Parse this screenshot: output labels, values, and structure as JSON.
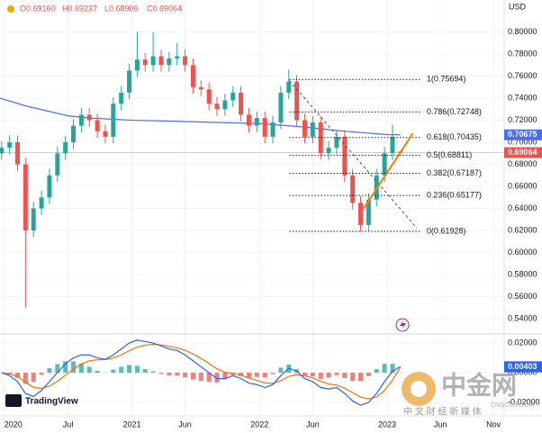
{
  "chart_data": [
    {
      "type": "candlestick",
      "header": [
        "O0.69160",
        "H0.69237",
        "L0.68906",
        "C0.69064"
      ],
      "currency": "USD",
      "up_color": "#26a69a",
      "down_color": "#ef5350",
      "xlim": [
        -0.4,
        47
      ],
      "ylim": [
        0.527,
        0.829
      ],
      "xticks": [
        {
          "value": 0,
          "label": "2020"
        },
        {
          "value": 6,
          "label": "Jul"
        },
        {
          "value": 12,
          "label": "2021"
        },
        {
          "value": 17,
          "label": "Jun"
        },
        {
          "value": 24,
          "label": "2022"
        },
        {
          "value": 29,
          "label": "Jun"
        },
        {
          "value": 36,
          "label": "2023"
        },
        {
          "value": 41,
          "label": "Jun"
        },
        {
          "value": 46,
          "label": "Nov"
        }
      ],
      "yticks": [
        {
          "value": 0.54,
          "label": "0.54000"
        },
        {
          "value": 0.56,
          "label": "0.56000"
        },
        {
          "value": 0.58,
          "label": "0.58000"
        },
        {
          "value": 0.6,
          "label": "0.60000"
        },
        {
          "value": 0.62,
          "label": "0.62000"
        },
        {
          "value": 0.64,
          "label": "0.64000"
        },
        {
          "value": 0.66,
          "label": "0.66000"
        },
        {
          "value": 0.68,
          "label": "0.68000"
        },
        {
          "value": 0.7,
          "label": "0.70000"
        },
        {
          "value": 0.72,
          "label": "0.72000"
        },
        {
          "value": 0.74,
          "label": "0.74000"
        },
        {
          "value": 0.76,
          "label": "0.76000"
        },
        {
          "value": 0.78,
          "label": "0.78000"
        },
        {
          "value": 0.8,
          "label": "0.80000"
        }
      ],
      "grid": true,
      "x": [
        -0.25,
        0.5,
        1.25,
        2,
        2.75,
        3.5,
        4.25,
        5,
        5.75,
        6.5,
        7.25,
        8,
        8.75,
        9.5,
        10.25,
        11,
        11.75,
        12.5,
        13.25,
        14,
        14.75,
        15.5,
        16.25,
        17,
        17.75,
        18.5,
        19.25,
        20,
        20.75,
        21.5,
        22.25,
        23,
        23.75,
        24.5,
        25.25,
        26,
        26.75,
        27.5,
        28.25,
        29,
        29.75,
        30.5,
        31.25,
        32,
        32.75,
        33.5,
        34.25,
        35,
        35.75,
        36.5,
        37.25
      ],
      "open": [
        0.69,
        0.695,
        0.7,
        0.68,
        0.62,
        0.64,
        0.65,
        0.67,
        0.69,
        0.7,
        0.715,
        0.725,
        0.72,
        0.71,
        0.705,
        0.735,
        0.745,
        0.765,
        0.775,
        0.77,
        0.778,
        0.77,
        0.776,
        0.778,
        0.77,
        0.75,
        0.748,
        0.735,
        0.73,
        0.738,
        0.745,
        0.725,
        0.715,
        0.722,
        0.705,
        0.718,
        0.745,
        0.755,
        0.72,
        0.705,
        0.718,
        0.69,
        0.695,
        0.705,
        0.67,
        0.645,
        0.625,
        0.648,
        0.67,
        0.69,
        0.6916
      ],
      "high": [
        0.701,
        0.706,
        0.706,
        0.686,
        0.646,
        0.656,
        0.676,
        0.696,
        0.706,
        0.721,
        0.731,
        0.731,
        0.726,
        0.716,
        0.741,
        0.751,
        0.771,
        0.8,
        0.781,
        0.8,
        0.784,
        0.782,
        0.79,
        0.784,
        0.776,
        0.756,
        0.754,
        0.741,
        0.744,
        0.751,
        0.751,
        0.731,
        0.728,
        0.728,
        0.724,
        0.751,
        0.766,
        0.761,
        0.726,
        0.724,
        0.724,
        0.701,
        0.711,
        0.711,
        0.676,
        0.651,
        0.654,
        0.676,
        0.696,
        0.716,
        0.69237
      ],
      "low": [
        0.684,
        0.689,
        0.674,
        0.55,
        0.614,
        0.634,
        0.644,
        0.664,
        0.684,
        0.694,
        0.709,
        0.714,
        0.704,
        0.699,
        0.699,
        0.729,
        0.739,
        0.759,
        0.764,
        0.764,
        0.764,
        0.764,
        0.77,
        0.764,
        0.744,
        0.742,
        0.729,
        0.724,
        0.724,
        0.732,
        0.719,
        0.709,
        0.709,
        0.699,
        0.699,
        0.712,
        0.739,
        0.714,
        0.699,
        0.699,
        0.684,
        0.684,
        0.689,
        0.664,
        0.639,
        0.619,
        0.619,
        0.642,
        0.664,
        0.684,
        0.68906
      ],
      "close": [
        0.695,
        0.7,
        0.68,
        0.62,
        0.64,
        0.65,
        0.67,
        0.69,
        0.7,
        0.715,
        0.725,
        0.72,
        0.71,
        0.705,
        0.735,
        0.745,
        0.765,
        0.775,
        0.77,
        0.778,
        0.77,
        0.776,
        0.778,
        0.77,
        0.75,
        0.748,
        0.735,
        0.73,
        0.738,
        0.745,
        0.725,
        0.715,
        0.722,
        0.705,
        0.718,
        0.745,
        0.755,
        0.72,
        0.705,
        0.718,
        0.69,
        0.695,
        0.705,
        0.67,
        0.645,
        0.625,
        0.648,
        0.67,
        0.69,
        0.705,
        0.69064
      ],
      "ma": {
        "color": "#4a6cf7",
        "x": [
          -0.4,
          2,
          6,
          8,
          12,
          16,
          20,
          24,
          28,
          32,
          36,
          37.25
        ],
        "values": [
          0.74,
          0.733,
          0.724,
          0.722,
          0.72,
          0.719,
          0.718,
          0.717,
          0.714,
          0.71,
          0.707,
          0.70675
        ]
      },
      "fib_x": [
        26.8,
        39.2
      ],
      "fib_levels": [
        {
          "value": 0.75694,
          "label": "1(0.75694)"
        },
        {
          "value": 0.72748,
          "label": "0.786(0.72748)"
        },
        {
          "value": 0.70435,
          "label": "0.618(0.70435)"
        },
        {
          "value": 0.68811,
          "label": "0.5(0.68811)"
        },
        {
          "value": 0.67187,
          "label": "0.382(0.67187)"
        },
        {
          "value": 0.65177,
          "label": "0.236(0.65177)"
        },
        {
          "value": 0.61928,
          "label": "0(0.61928)"
        }
      ],
      "trendline": {
        "color": "#f57c00",
        "x": [
          33.8,
          38.4
        ],
        "y": [
          0.64,
          0.708
        ]
      },
      "diagonal": {
        "x": [
          26.8,
          38.8
        ],
        "y": [
          0.756,
          0.622
        ]
      },
      "logo_text": "TradingView",
      "watermark": {
        "title": "中金网",
        "url": "CNGOLD.COM",
        "tagline": "中 文 财 经 新 媒 体"
      }
    },
    {
      "type": "macd",
      "ylim": [
        -0.0279,
        0.0255
      ],
      "yticks": [
        {
          "value": -0.02,
          "label": "-0.02000"
        },
        {
          "value": 0,
          "label": "0.00000"
        },
        {
          "value": 0.02,
          "label": "0.02000"
        }
      ],
      "macd_line": {
        "color": "#2962ff",
        "values": [
          0,
          -0.002,
          -0.006,
          -0.014,
          -0.016,
          -0.012,
          -0.006,
          0,
          0.006,
          0.01,
          0.012,
          0.012,
          0.01,
          0.009,
          0.012,
          0.016,
          0.02,
          0.022,
          0.021,
          0.02,
          0.018,
          0.016,
          0.015,
          0.012,
          0.008,
          0.004,
          0,
          -0.004,
          -0.004,
          -0.002,
          -0.004,
          -0.007,
          -0.008,
          -0.01,
          -0.008,
          -0.002,
          0.003,
          0.001,
          -0.004,
          -0.006,
          -0.01,
          -0.011,
          -0.01,
          -0.014,
          -0.019,
          -0.022,
          -0.02,
          -0.014,
          -0.006,
          0.001,
          0.00403
        ]
      },
      "signal_line": {
        "color": "#ff6d00",
        "values": [
          0,
          -0.0007,
          -0.0025,
          -0.0065,
          -0.0098,
          -0.0106,
          -0.009,
          -0.0058,
          -0.0017,
          0.0024,
          0.0058,
          0.008,
          0.0087,
          0.0088,
          0.0099,
          0.012,
          0.0148,
          0.0173,
          0.0186,
          0.0191,
          0.0187,
          0.0178,
          0.0168,
          0.0151,
          0.0126,
          0.0096,
          0.0062,
          0.0026,
          0.0003,
          -0.0005,
          -0.0017,
          -0.0036,
          -0.0051,
          -0.0068,
          -0.0072,
          -0.0054,
          -0.0025,
          -0.0013,
          -0.0022,
          -0.0035,
          -0.0058,
          -0.0076,
          -0.0084,
          -0.0104,
          -0.0134,
          -0.0164,
          -0.0177,
          -0.0164,
          -0.012,
          -0.005,
          0.00387
        ]
      },
      "histogram": {
        "up_color": "#26a69a",
        "down_color": "#ef5350",
        "values": [
          0,
          -0.0013,
          -0.0035,
          -0.0075,
          -0.0062,
          -0.0014,
          0.003,
          0.0058,
          0.0077,
          0.0076,
          0.0062,
          0.004,
          0.0013,
          0.0002,
          0.0021,
          0.004,
          0.0052,
          0.0047,
          0.0024,
          0.0009,
          -0.0007,
          -0.0018,
          -0.0018,
          -0.0031,
          -0.0046,
          -0.0056,
          -0.0062,
          -0.0066,
          -0.0043,
          -0.0015,
          -0.0023,
          -0.0034,
          -0.0029,
          -0.0032,
          -0.0008,
          0.0034,
          0.0055,
          0.0023,
          -0.0018,
          -0.0025,
          -0.0042,
          -0.0034,
          -0.0016,
          -0.0036,
          -0.0056,
          -0.0056,
          -0.0023,
          0.0024,
          0.006,
          0.006,
          0.00016
        ]
      }
    }
  ]
}
